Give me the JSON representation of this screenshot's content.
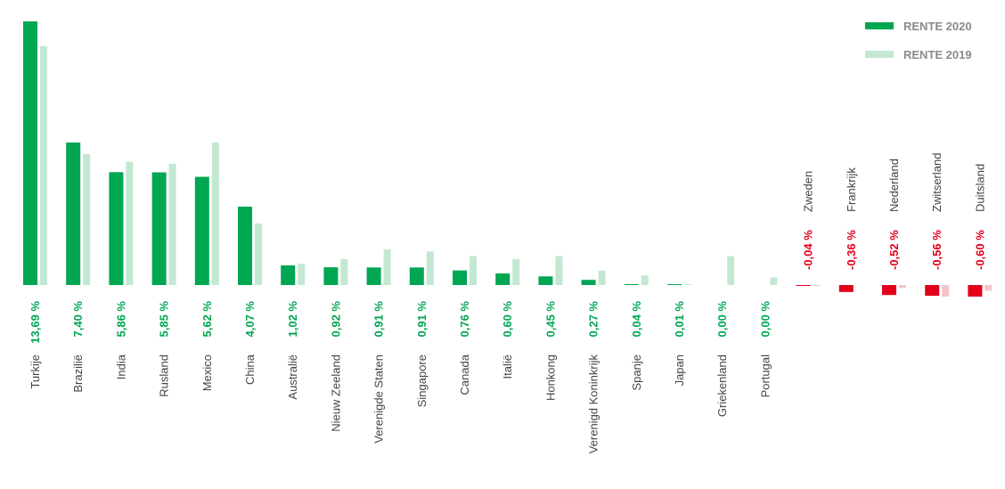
{
  "chart_data": {
    "type": "bar",
    "legend_position": "top-right",
    "grid": false,
    "categories": [
      "Turkije",
      "Brazilië",
      "India",
      "Rusland",
      "Mexico",
      "China",
      "Australië",
      "Nieuw Zeeland",
      "Verenigde Staten",
      "Singapore",
      "Canada",
      "Italië",
      "Honkong",
      "Verenigd Koninkrijk",
      "Spanje",
      "Japan",
      "Griekenland",
      "Portugal",
      "Zweden",
      "Frankrijk",
      "Nederland",
      "Zwitserland",
      "Duitsland"
    ],
    "value_labels": [
      "13,69 %",
      "7,40 %",
      "5,86 %",
      "5,85 %",
      "5,62 %",
      "4,07 %",
      "1,02 %",
      "0,92 %",
      "0,91 %",
      "0,91 %",
      "0,76 %",
      "0,60 %",
      "0,45 %",
      "0,27 %",
      "0,04 %",
      "0,01 %",
      "0,00 %",
      "0,00 %",
      "-0,04 %",
      "-0,36 %",
      "-0,52 %",
      "-0,56 %",
      "-0,60 %"
    ],
    "series": [
      {
        "name": "RENTE 2020",
        "values": [
          13.69,
          7.4,
          5.86,
          5.85,
          5.62,
          4.07,
          1.02,
          0.92,
          0.91,
          0.91,
          0.76,
          0.6,
          0.45,
          0.27,
          0.04,
          0.01,
          0.0,
          0.0,
          -0.04,
          -0.36,
          -0.52,
          -0.56,
          -0.6
        ]
      },
      {
        "name": "RENTE 2019",
        "values": [
          12.4,
          6.8,
          6.4,
          6.3,
          7.4,
          3.2,
          1.1,
          1.35,
          1.85,
          1.75,
          1.5,
          1.35,
          1.5,
          0.75,
          0.5,
          0.05,
          1.5,
          0.4,
          -0.05,
          0.0,
          -0.15,
          -0.6,
          -0.3
        ]
      }
    ],
    "colors": {
      "positive_2020": "#00a651",
      "positive_2019": "#c3e8d2",
      "negative_2020": "#e2001a",
      "negative_2019": "#f5c4c9",
      "positive_label": "#00a651",
      "negative_label": "#e2001a"
    }
  }
}
